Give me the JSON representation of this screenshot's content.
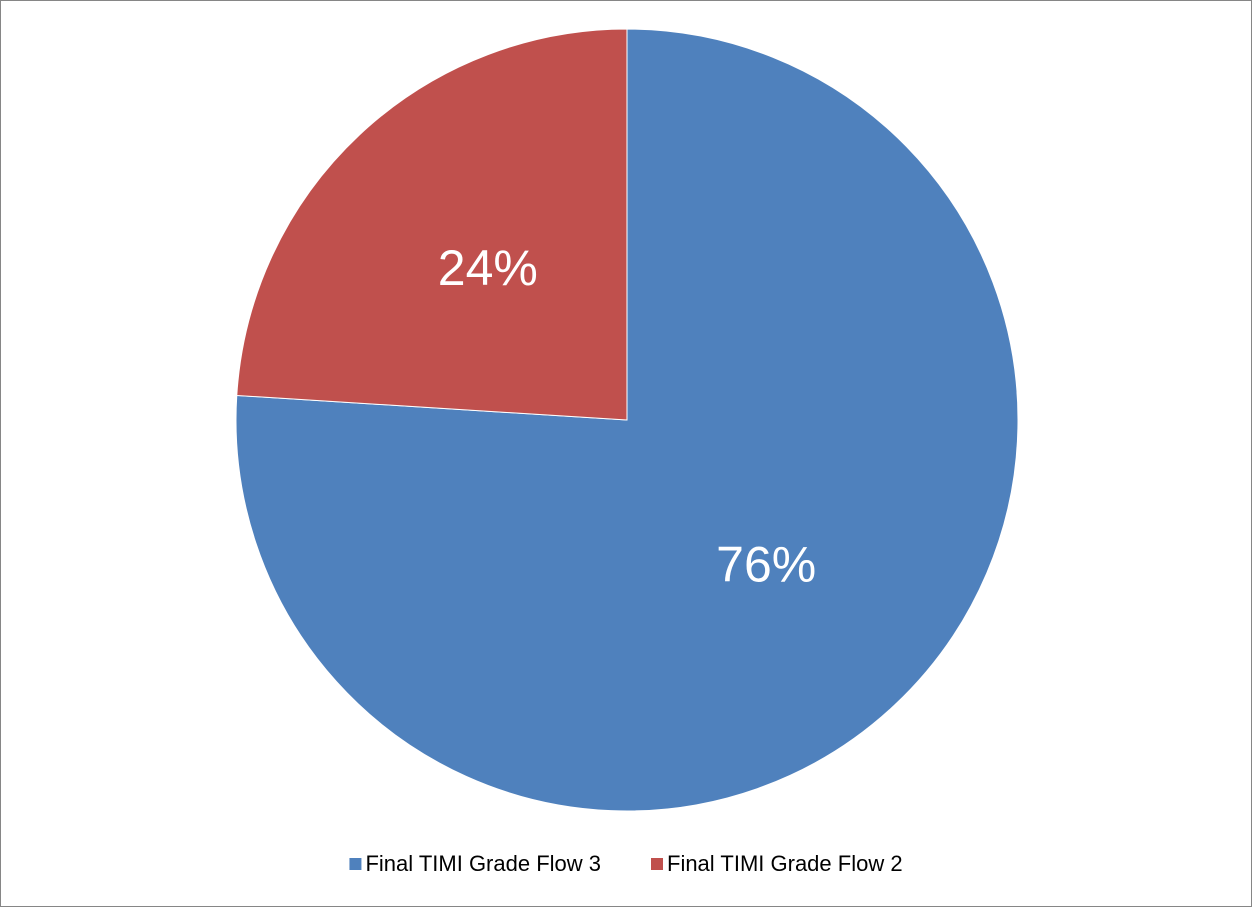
{
  "chart_data": {
    "type": "pie",
    "categories": [
      "Final TIMI Grade Flow 3",
      "Final TIMI Grade Flow 2"
    ],
    "values": [
      76,
      24
    ],
    "value_labels": [
      "76%",
      "24%"
    ],
    "colors": [
      "#4f81bd",
      "#c0504d"
    ],
    "legend": "bottom"
  }
}
